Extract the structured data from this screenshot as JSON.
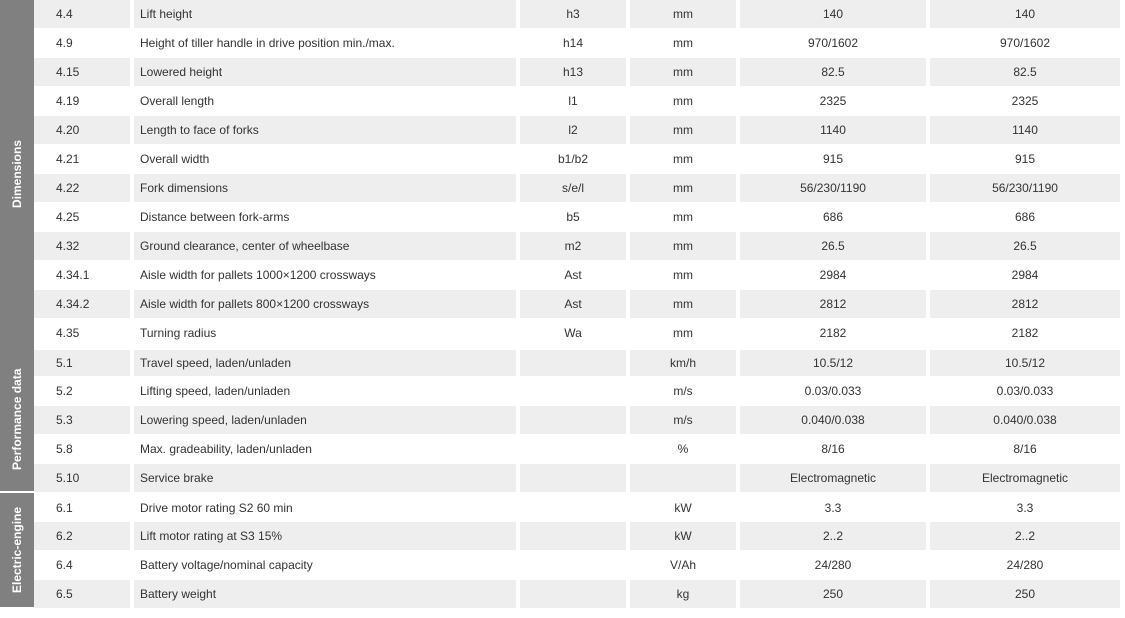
{
  "categories": [
    {
      "label": "Dimensions",
      "span": 12
    },
    {
      "label": "Performance data",
      "span": 5
    },
    {
      "label": "Electric-engine",
      "span": 4
    }
  ],
  "rows": [
    {
      "code": "4.4",
      "desc": "Lift height",
      "sym": "h3",
      "unit": "mm",
      "v1": "140",
      "v2": "140"
    },
    {
      "code": "4.9",
      "desc": "Height of tiller handle in drive position min./max.",
      "sym": "h14",
      "unit": "mm",
      "v1": "970/1602",
      "v2": "970/1602"
    },
    {
      "code": "4.15",
      "desc": "Lowered height",
      "sym": "h13",
      "unit": "mm",
      "v1": "82.5",
      "v2": "82.5"
    },
    {
      "code": "4.19",
      "desc": "Overall length",
      "sym": "l1",
      "unit": "mm",
      "v1": "2325",
      "v2": "2325"
    },
    {
      "code": "4.20",
      "desc": "Length to face of forks",
      "sym": "l2",
      "unit": "mm",
      "v1": "1140",
      "v2": "1140"
    },
    {
      "code": "4.21",
      "desc": "Overall width",
      "sym": "b1/b2",
      "unit": "mm",
      "v1": "915",
      "v2": "915"
    },
    {
      "code": "4.22",
      "desc": "Fork dimensions",
      "sym": "s/e/l",
      "unit": "mm",
      "v1": "56/230/1190",
      "v2": "56/230/1190"
    },
    {
      "code": "4.25",
      "desc": "Distance between fork-arms",
      "sym": "b5",
      "unit": "mm",
      "v1": "686",
      "v2": "686"
    },
    {
      "code": "4.32",
      "desc": "Ground clearance, center of wheelbase",
      "sym": "m2",
      "unit": "mm",
      "v1": "26.5",
      "v2": "26.5"
    },
    {
      "code": "4.34.1",
      "desc": "Aisle width for pallets 1000×1200 crossways",
      "sym": "Ast",
      "unit": "mm",
      "v1": "2984",
      "v2": "2984"
    },
    {
      "code": "4.34.2",
      "desc": "Aisle width for pallets 800×1200 crossways",
      "sym": "Ast",
      "unit": "mm",
      "v1": "2812",
      "v2": "2812"
    },
    {
      "code": "4.35",
      "desc": "Turning radius",
      "sym": "Wa",
      "unit": "mm",
      "v1": "2182",
      "v2": "2182"
    },
    {
      "code": "5.1",
      "desc": "Travel speed, laden/unladen",
      "sym": "",
      "unit": "km/h",
      "v1": "10.5/12",
      "v2": "10.5/12"
    },
    {
      "code": "5.2",
      "desc": "Lifting speed, laden/unladen",
      "sym": "",
      "unit": "m/s",
      "v1": "0.03/0.033",
      "v2": "0.03/0.033"
    },
    {
      "code": "5.3",
      "desc": "Lowering speed, laden/unladen",
      "sym": "",
      "unit": "m/s",
      "v1": "0.040/0.038",
      "v2": "0.040/0.038"
    },
    {
      "code": "5.8",
      "desc": "Max. gradeability, laden/unladen",
      "sym": "",
      "unit": "%",
      "v1": "8/16",
      "v2": "8/16"
    },
    {
      "code": "5.10",
      "desc": "Service brake",
      "sym": "",
      "unit": "",
      "v1": "Electromagnetic",
      "v2": "Electromagnetic"
    },
    {
      "code": "6.1",
      "desc": "Drive motor rating S2 60 min",
      "sym": "",
      "unit": "kW",
      "v1": "3.3",
      "v2": "3.3"
    },
    {
      "code": "6.2",
      "desc": "Lift motor rating at S3 15%",
      "sym": "",
      "unit": "kW",
      "v1": "2..2",
      "v2": "2..2"
    },
    {
      "code": "6.4",
      "desc": "Battery voltage/nominal capacity",
      "sym": "",
      "unit": "V/Ah",
      "v1": "24/280",
      "v2": "24/280"
    },
    {
      "code": "6.5",
      "desc": "Battery weight",
      "sym": "",
      "unit": "kg",
      "v1": "250",
      "v2": "250"
    }
  ],
  "rowHeightPx": 29,
  "colors": {
    "categoryBg": "#808080",
    "categoryText": "#ffffff",
    "stripeA": "#eeeeee",
    "stripeB": "#ffffff",
    "text": "#333333"
  }
}
